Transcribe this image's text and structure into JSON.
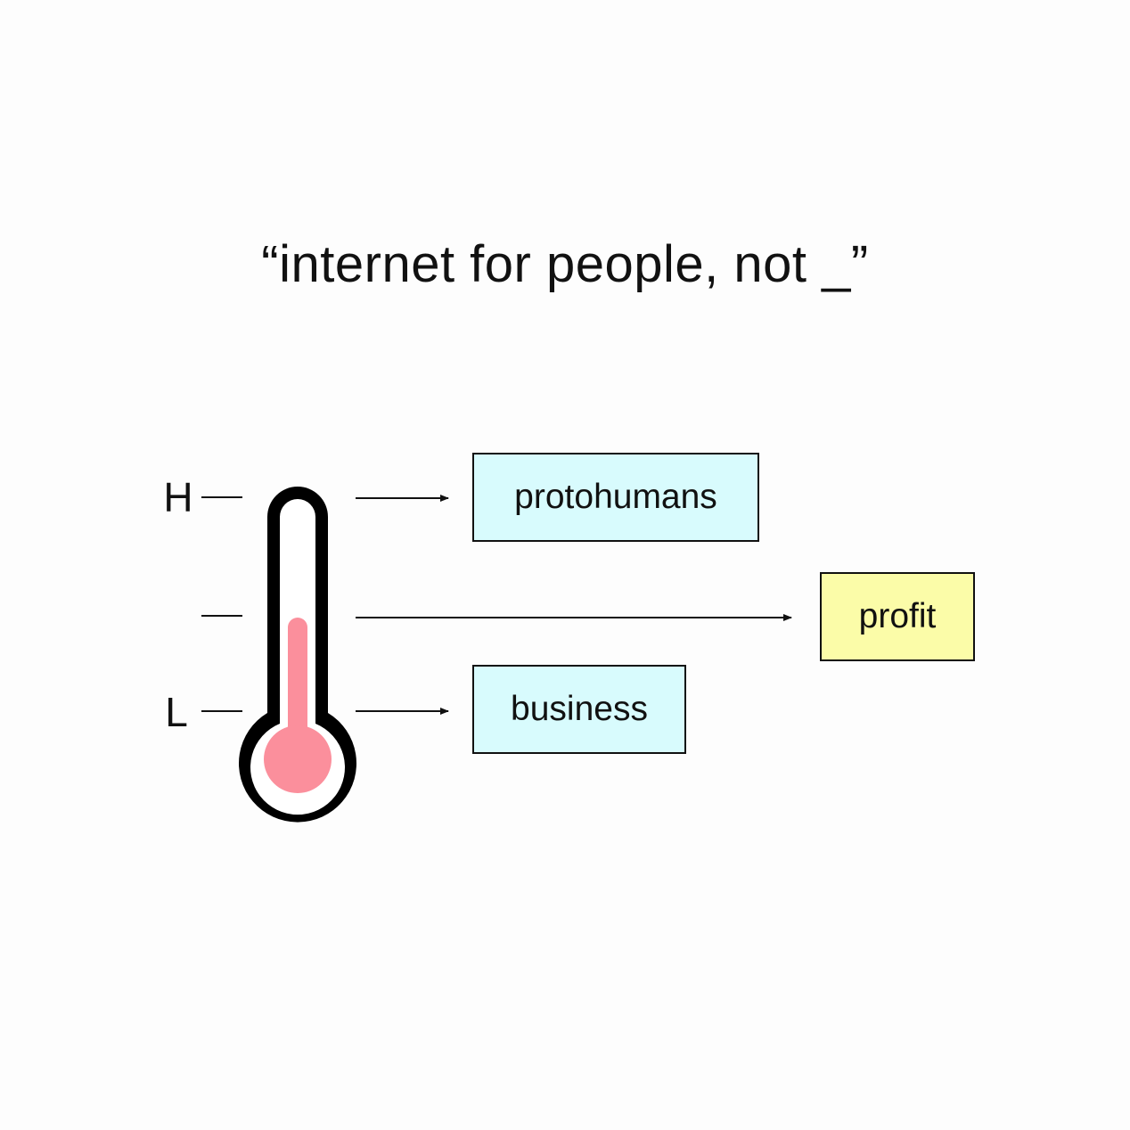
{
  "title": "“internet for people, not _”",
  "scale": {
    "high_label": "H",
    "low_label": "L"
  },
  "boxes": {
    "high": {
      "label": "protohumans",
      "color": "#d8fbfd"
    },
    "mid": {
      "label": "profit",
      "color": "#fbfca8"
    },
    "low": {
      "label": "business",
      "color": "#d8fbfd"
    }
  },
  "thermometer": {
    "outline_color": "#000000",
    "fluid_color": "#fb8f9c"
  }
}
